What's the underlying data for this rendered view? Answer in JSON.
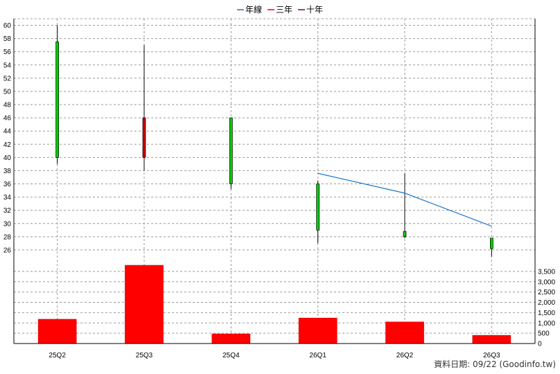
{
  "legend": [
    {
      "label": "年線",
      "color": "#1874CD"
    },
    {
      "label": "三年",
      "color": "#FF0000"
    },
    {
      "label": "十年",
      "color": "#8B0000"
    }
  ],
  "footer": {
    "prefix": "資料日期: ",
    "date": "09/22",
    "source": "  (Goodinfo.tw)"
  },
  "chart_data": {
    "type": "candlestick_with_volume",
    "categories": [
      "25Q2",
      "25Q3",
      "25Q4",
      "26Q1",
      "26Q2",
      "26Q3"
    ],
    "price_axis": {
      "min": 24,
      "max": 61,
      "ticks": [
        26,
        28,
        30,
        32,
        34,
        36,
        38,
        40,
        42,
        44,
        46,
        48,
        50,
        52,
        54,
        56,
        58,
        60
      ]
    },
    "volume_axis": {
      "min": 0,
      "max": 3900,
      "ticks": [
        0,
        500,
        1000,
        1500,
        2000,
        2500,
        3000,
        3500
      ],
      "tick_labels": [
        "0",
        "500",
        "1,000",
        "1,500",
        "2,000",
        "2,500",
        "3,000",
        "3,500"
      ]
    },
    "candles": [
      {
        "period": "25Q2",
        "open": 57.5,
        "high": 60.0,
        "low": 39.0,
        "close": 40.0,
        "color": "#00CC00"
      },
      {
        "period": "25Q3",
        "open": 40.0,
        "high": 57.0,
        "low": 38.0,
        "close": 46.0,
        "color": "#CC0000"
      },
      {
        "period": "25Q4",
        "open": 46.0,
        "high": 46.0,
        "low": 35.2,
        "close": 36.0,
        "color": "#00CC00"
      },
      {
        "period": "26Q1",
        "open": 36.0,
        "high": 36.5,
        "low": 27.0,
        "close": 29.0,
        "color": "#00CC00"
      },
      {
        "period": "26Q2",
        "open": 28.8,
        "high": 37.6,
        "low": 27.8,
        "close": 28.0,
        "color": "#00CC00"
      },
      {
        "period": "26Q3",
        "open": 27.8,
        "high": 27.8,
        "low": 25.0,
        "close": 26.2,
        "color": "#00CC00"
      }
    ],
    "series": [
      {
        "name": "年線",
        "color": "#1874CD",
        "points": [
          {
            "period": "26Q1",
            "value": 37.6
          },
          {
            "period": "26Q2",
            "value": 34.6
          },
          {
            "period": "26Q3",
            "value": 29.6
          }
        ]
      }
    ],
    "volume": [
      {
        "period": "25Q2",
        "value": 1180
      },
      {
        "period": "25Q3",
        "value": 3800
      },
      {
        "period": "25Q4",
        "value": 470
      },
      {
        "period": "26Q1",
        "value": 1240
      },
      {
        "period": "26Q2",
        "value": 1050
      },
      {
        "period": "26Q3",
        "value": 400
      }
    ],
    "grid": true,
    "legend_position": "top-center"
  }
}
